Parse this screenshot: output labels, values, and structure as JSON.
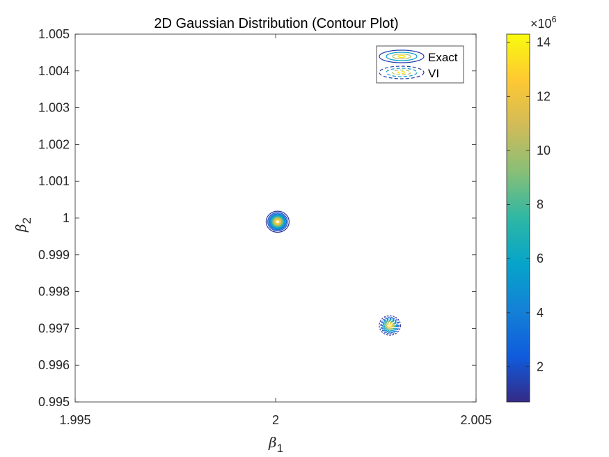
{
  "chart_data": {
    "type": "contour",
    "title": "2D Gaussian Distribution (Contour Plot)",
    "xlabel": {
      "symbol": "β",
      "subscript": "1"
    },
    "ylabel": {
      "symbol": "β",
      "subscript": "2"
    },
    "xlim": [
      1.995,
      2.005
    ],
    "ylim": [
      0.995,
      1.005
    ],
    "xticks": [
      1.995,
      2,
      2.005
    ],
    "xtick_labels": [
      "1.995",
      "2",
      "2.005"
    ],
    "yticks": [
      0.995,
      0.996,
      0.997,
      0.998,
      0.999,
      1,
      1.001,
      1.002,
      1.003,
      1.004,
      1.005
    ],
    "ytick_labels": [
      "0.995",
      "0.996",
      "0.997",
      "0.998",
      "0.999",
      "1",
      "1.001",
      "1.002",
      "1.003",
      "1.004",
      "1.005"
    ],
    "grid": false,
    "legend_position": "top-right",
    "series": [
      {
        "name": "Exact",
        "line_style": "solid",
        "center": [
          2.00005,
          0.9999
        ],
        "sigma": [
          0.000125,
          0.000125
        ],
        "peak": 14000000
      },
      {
        "name": "VI",
        "line_style": "dashed",
        "center": [
          2.00285,
          0.99708
        ],
        "sigma": [
          0.000115,
          0.000115
        ],
        "peak": 14300000
      }
    ],
    "colorbar": {
      "min": 700000,
      "max": 14300000,
      "ticks": [
        2,
        4,
        6,
        8,
        10,
        12,
        14
      ],
      "tick_labels": [
        "2",
        "4",
        "6",
        "8",
        "10",
        "12",
        "14"
      ],
      "exponent_label": {
        "base": "×10",
        "power": "6"
      },
      "colormap": "parula"
    }
  }
}
